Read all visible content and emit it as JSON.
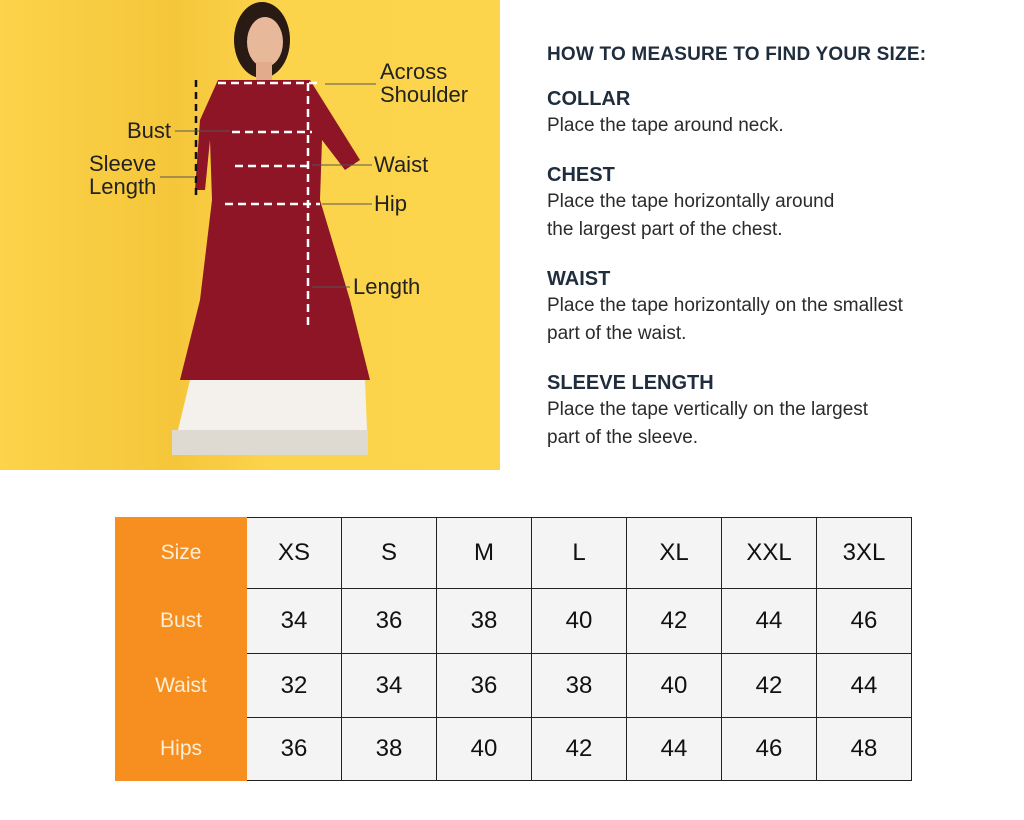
{
  "illustration": {
    "labels": {
      "across_shoulder_1": "Across",
      "across_shoulder_2": "Shoulder",
      "bust": "Bust",
      "sleeve_length_1": "Sleeve",
      "sleeve_length_2": "Length",
      "waist": "Waist",
      "hip": "Hip",
      "length": "Length"
    },
    "background_color": "#fcd34a",
    "garment_color": "#8e1526"
  },
  "guide": {
    "title": "HOW TO MEASURE TO FIND YOUR SIZE:",
    "sections": [
      {
        "heading": "COLLAR",
        "lines": [
          "Place the tape around neck."
        ]
      },
      {
        "heading": "CHEST",
        "lines": [
          "Place the tape horizontally around",
          "the largest part of the chest."
        ]
      },
      {
        "heading": "WAIST",
        "lines": [
          "Place the tape horizontally on the smallest",
          "part of the waist."
        ]
      },
      {
        "heading": "SLEEVE LENGTH",
        "lines": [
          "Place the tape vertically on the largest",
          "part of the sleeve."
        ]
      }
    ]
  },
  "size_table": {
    "header_color": "#f68f1f",
    "rows": [
      {
        "label": "Size",
        "values": [
          "XS",
          "S",
          "M",
          "L",
          "XL",
          "XXL",
          "3XL"
        ]
      },
      {
        "label": "Bust",
        "values": [
          "34",
          "36",
          "38",
          "40",
          "42",
          "44",
          "46"
        ]
      },
      {
        "label": "Waist",
        "values": [
          "32",
          "34",
          "36",
          "38",
          "40",
          "42",
          "44"
        ]
      },
      {
        "label": "Hips",
        "values": [
          "36",
          "38",
          "40",
          "42",
          "44",
          "46",
          "48"
        ]
      }
    ]
  }
}
